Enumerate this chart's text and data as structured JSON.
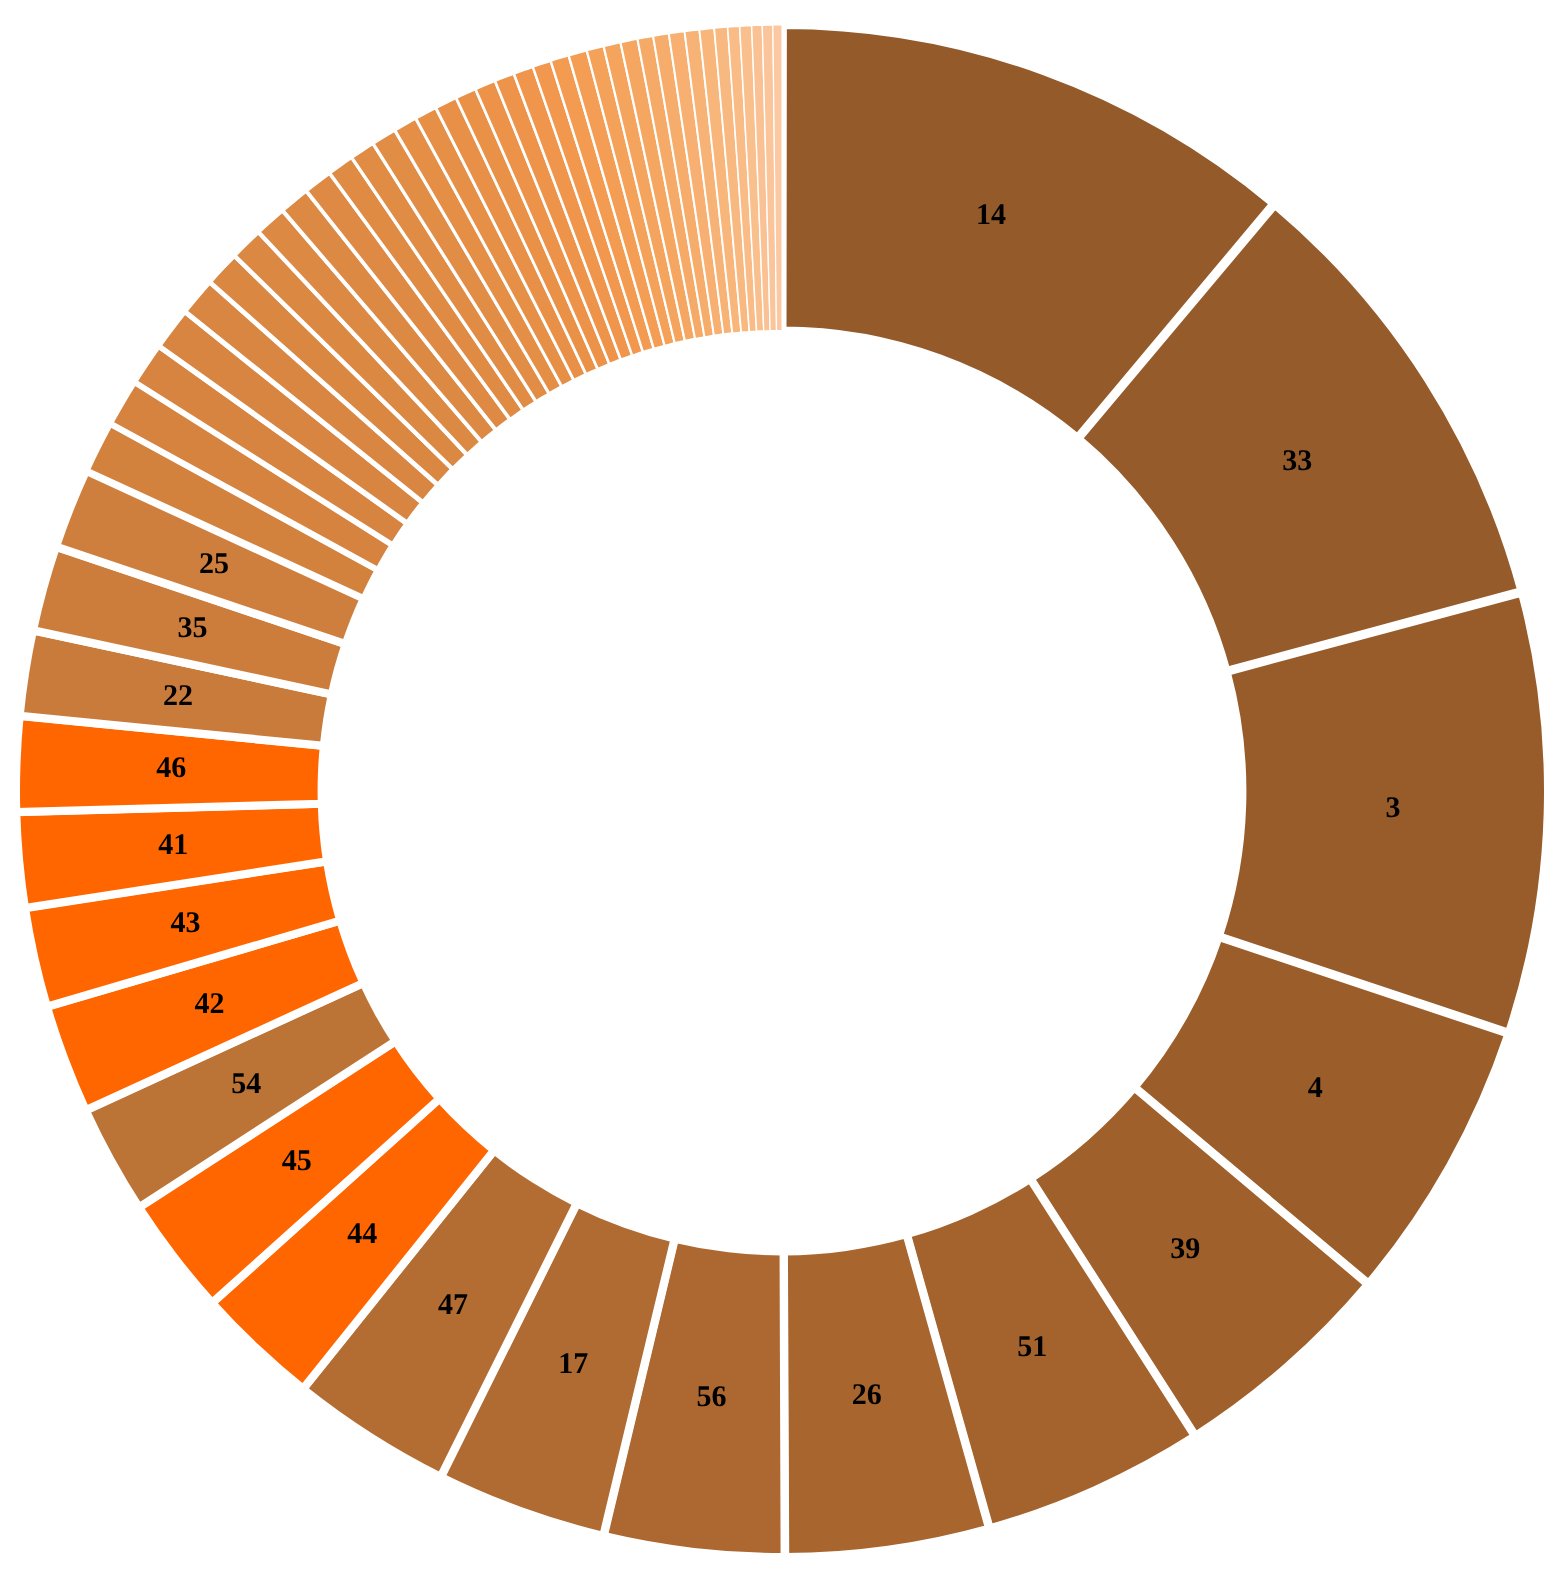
{
  "chart_data": {
    "type": "donut",
    "legend": false,
    "categories": [
      "14",
      "33",
      "3",
      "4",
      "39",
      "51",
      "26",
      "56",
      "17",
      "47",
      "44",
      "45",
      "54",
      "42",
      "43",
      "41",
      "46",
      "22",
      "35",
      "25",
      null,
      null,
      null,
      null,
      null,
      null,
      null,
      null,
      null,
      null,
      null,
      null,
      null,
      null,
      null,
      null,
      null,
      null,
      null,
      null,
      null,
      null,
      null,
      null,
      null,
      null,
      null,
      null,
      null,
      null,
      null,
      null,
      null,
      null,
      null,
      null,
      null
    ],
    "values": [
      11.1,
      9.7,
      9.3,
      6.0,
      4.8,
      4.7,
      4.3,
      3.8,
      3.6,
      3.4,
      2.6,
      2.5,
      2.3,
      2.3,
      2.1,
      2.0,
      2.0,
      1.8,
      1.8,
      1.7,
      1.1,
      1.0,
      0.9,
      0.9,
      0.8,
      0.75,
      0.7,
      0.67,
      0.64,
      0.61,
      0.56,
      0.53,
      0.53,
      0.5,
      0.47,
      0.47,
      0.44,
      0.44,
      0.42,
      0.42,
      0.39,
      0.39,
      0.39,
      0.36,
      0.36,
      0.36,
      0.33,
      0.33,
      0.33,
      0.31,
      0.31,
      0.28,
      0.25,
      0.25,
      0.22,
      0.22,
      0.19
    ],
    "colors": [
      "#945a2a",
      "#965b2a",
      "#985c2b",
      "#9b5e2b",
      "#a0602c",
      "#a4632d",
      "#a8652e",
      "#ac6830",
      "#b06b32",
      "#b36d33",
      "#ff6600",
      "#ff6600",
      "#bb7436",
      "#ff6600",
      "#ff6600",
      "#ff6600",
      "#ff6600",
      "#c97b3b",
      "#cc7d3c",
      "#cf7f3d",
      "#d3823e",
      "#d5833f",
      "#d68440",
      "#d78540",
      "#d88641",
      "#d98741",
      "#da8842",
      "#db8943",
      "#dc8943",
      "#de8a44",
      "#df8b44",
      "#e08c45",
      "#e28d46",
      "#e48e46",
      "#e68f47",
      "#e89047",
      "#ea9148",
      "#ec9249",
      "#ee944a",
      "#f0964c",
      "#f2984e",
      "#f39b51",
      "#f49e55",
      "#f4a159",
      "#f5a45e",
      "#f5a762",
      "#f6aa67",
      "#f6ad6c",
      "#f7b071",
      "#f7b376",
      "#f8b67b",
      "#f8b981",
      "#f9bc87",
      "#f9bf8d",
      "#fac294",
      "#fac59b",
      "#fbc8a2"
    ]
  }
}
